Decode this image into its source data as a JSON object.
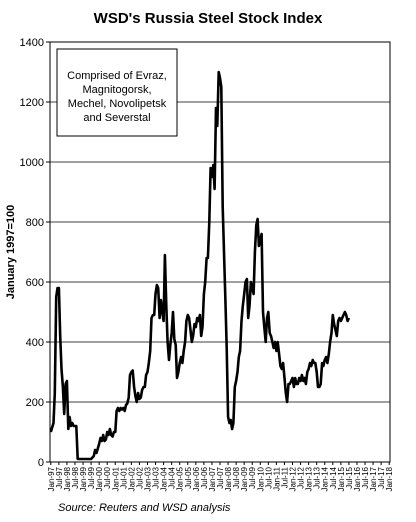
{
  "chart_data": {
    "type": "line",
    "title": "WSD's Russia Steel Stock Index",
    "ylabel": "January 1997=100",
    "xlabel": "",
    "ylim": [
      0,
      1400
    ],
    "yticks": [
      0,
      200,
      400,
      600,
      800,
      1000,
      1200,
      1400
    ],
    "grid": "horizontal",
    "legend": "none",
    "annotation": [
      "Comprised  of Evraz,",
      "Magnitogorsk,",
      "Mechel, Novolipetsk",
      "and Severstal"
    ],
    "source": "Source:  Reuters and WSD analysis",
    "line_color": "#000000",
    "x_ticks": [
      "Jan-97",
      "Jul-97",
      "Jan-98",
      "Jul-98",
      "Jan-99",
      "Jul-99",
      "Jan-00",
      "Jul-00",
      "Jan-01",
      "Jul-01",
      "Jan-02",
      "Jul-02",
      "Jan-03",
      "Jul-03",
      "Jan-04",
      "Jul-04",
      "Jan-05",
      "Jul-05",
      "Jan-06",
      "Jul-06",
      "Jan-07",
      "Jul-07",
      "Jan-08",
      "Jul-08",
      "Jan-09",
      "Jul-09",
      "Jan-10",
      "Jul-10",
      "Jan-11",
      "Jul-11",
      "Jan-12",
      "Jul-12",
      "Jan-13",
      "Jul-13",
      "Jan-14",
      "Jul-14",
      "Jan-15",
      "Jul-15",
      "Jan-16",
      "Jul-16",
      "Jan-17",
      "Jul-17",
      "Jan-18"
    ],
    "series": [
      {
        "points": [
          [
            "Jan-97",
            100
          ],
          [
            "Mar-97",
            130
          ],
          [
            "Apr-97",
            230
          ],
          [
            "May-97",
            550
          ],
          [
            "Jun-97",
            580
          ],
          [
            "Jul-97",
            580
          ],
          [
            "Aug-97",
            420
          ],
          [
            "Sep-97",
            310
          ],
          [
            "Oct-97",
            250
          ],
          [
            "Nov-97",
            160
          ],
          [
            "Dec-97",
            260
          ],
          [
            "Jan-98",
            270
          ],
          [
            "Feb-98",
            110
          ],
          [
            "Mar-98",
            150
          ],
          [
            "Apr-98",
            120
          ],
          [
            "May-98",
            130
          ],
          [
            "Jun-98",
            120
          ],
          [
            "Aug-98",
            120
          ],
          [
            "Sep-98",
            10
          ],
          [
            "Jan-99",
            10
          ],
          [
            "Jul-99",
            10
          ],
          [
            "Aug-99",
            15
          ],
          [
            "Sep-99",
            20
          ],
          [
            "Oct-99",
            40
          ],
          [
            "Nov-99",
            30
          ],
          [
            "Dec-99",
            45
          ],
          [
            "Jan-00",
            60
          ],
          [
            "Feb-00",
            80
          ],
          [
            "Mar-00",
            70
          ],
          [
            "Apr-00",
            90
          ],
          [
            "May-00",
            70
          ],
          [
            "Jun-00",
            75
          ],
          [
            "Jul-00",
            100
          ],
          [
            "Aug-00",
            90
          ],
          [
            "Sep-00",
            110
          ],
          [
            "Oct-00",
            90
          ],
          [
            "Nov-00",
            85
          ],
          [
            "Dec-00",
            100
          ],
          [
            "Jan-01",
            100
          ],
          [
            "Feb-01",
            170
          ],
          [
            "Mar-01",
            180
          ],
          [
            "Apr-01",
            170
          ],
          [
            "May-01",
            180
          ],
          [
            "Jun-01",
            175
          ],
          [
            "Jul-01",
            180
          ],
          [
            "Aug-01",
            170
          ],
          [
            "Sep-01",
            190
          ],
          [
            "Oct-01",
            195
          ],
          [
            "Nov-01",
            215
          ],
          [
            "Dec-01",
            290
          ],
          [
            "Jan-02",
            300
          ],
          [
            "Feb-02",
            305
          ],
          [
            "Mar-02",
            250
          ],
          [
            "Apr-02",
            220
          ],
          [
            "May-02",
            200
          ],
          [
            "Jun-02",
            230
          ],
          [
            "Jul-02",
            210
          ],
          [
            "Aug-02",
            215
          ],
          [
            "Sep-02",
            240
          ],
          [
            "Oct-02",
            250
          ],
          [
            "Nov-02",
            250
          ],
          [
            "Dec-02",
            290
          ],
          [
            "Jan-03",
            300
          ],
          [
            "Feb-03",
            330
          ],
          [
            "Mar-03",
            370
          ],
          [
            "Apr-03",
            480
          ],
          [
            "May-03",
            490
          ],
          [
            "Jun-03",
            490
          ],
          [
            "Jul-03",
            560
          ],
          [
            "Aug-03",
            590
          ],
          [
            "Sep-03",
            580
          ],
          [
            "Oct-03",
            480
          ],
          [
            "Nov-03",
            540
          ],
          [
            "Dec-03",
            500
          ],
          [
            "Jan-04",
            470
          ],
          [
            "Feb-04",
            690
          ],
          [
            "Mar-04",
            520
          ],
          [
            "Apr-04",
            400
          ],
          [
            "May-04",
            340
          ],
          [
            "Jun-04",
            390
          ],
          [
            "Jul-04",
            430
          ],
          [
            "Aug-04",
            500
          ],
          [
            "Sep-04",
            410
          ],
          [
            "Oct-04",
            390
          ],
          [
            "Nov-04",
            280
          ],
          [
            "Dec-04",
            300
          ],
          [
            "Jan-05",
            330
          ],
          [
            "Feb-05",
            350
          ],
          [
            "Mar-05",
            330
          ],
          [
            "Apr-05",
            370
          ],
          [
            "May-05",
            400
          ],
          [
            "Jun-05",
            470
          ],
          [
            "Jul-05",
            490
          ],
          [
            "Aug-05",
            480
          ],
          [
            "Sep-05",
            440
          ],
          [
            "Oct-05",
            400
          ],
          [
            "Nov-05",
            420
          ],
          [
            "Dec-05",
            460
          ],
          [
            "Jan-06",
            450
          ],
          [
            "Feb-06",
            480
          ],
          [
            "Mar-06",
            470
          ],
          [
            "Apr-06",
            490
          ],
          [
            "May-06",
            420
          ],
          [
            "Jun-06",
            450
          ],
          [
            "Jul-06",
            560
          ],
          [
            "Aug-06",
            600
          ],
          [
            "Sep-06",
            680
          ],
          [
            "Oct-06",
            680
          ],
          [
            "Nov-06",
            800
          ],
          [
            "Dec-06",
            980
          ],
          [
            "Jan-07",
            950
          ],
          [
            "Feb-07",
            990
          ],
          [
            "Mar-07",
            910
          ],
          [
            "Apr-07",
            1180
          ],
          [
            "May-07",
            1120
          ],
          [
            "Jun-07",
            1300
          ],
          [
            "Jul-07",
            1280
          ],
          [
            "Aug-07",
            1250
          ],
          [
            "Sep-07",
            850
          ],
          [
            "Oct-07",
            700
          ],
          [
            "Nov-07",
            540
          ],
          [
            "Dec-07",
            380
          ],
          [
            "Jan-08",
            150
          ],
          [
            "Feb-08",
            130
          ],
          [
            "Mar-08",
            140
          ],
          [
            "Apr-08",
            110
          ],
          [
            "May-08",
            130
          ],
          [
            "Jun-08",
            250
          ],
          [
            "Jul-08",
            270
          ],
          [
            "Aug-08",
            300
          ],
          [
            "Sep-08",
            350
          ],
          [
            "Oct-08",
            370
          ],
          [
            "Nov-08",
            470
          ],
          [
            "Dec-08",
            520
          ],
          [
            "Jan-09",
            560
          ],
          [
            "Feb-09",
            600
          ],
          [
            "Mar-09",
            610
          ],
          [
            "Apr-09",
            480
          ],
          [
            "May-09",
            520
          ],
          [
            "Jun-09",
            600
          ],
          [
            "Jul-09",
            580
          ],
          [
            "Aug-09",
            560
          ],
          [
            "Sep-09",
            700
          ],
          [
            "Oct-09",
            790
          ],
          [
            "Nov-09",
            810
          ],
          [
            "Dec-09",
            720
          ],
          [
            "Jan-10",
            740
          ],
          [
            "Feb-10",
            760
          ],
          [
            "Mar-10",
            500
          ],
          [
            "Apr-10",
            450
          ],
          [
            "May-10",
            400
          ],
          [
            "Jun-10",
            480
          ],
          [
            "Jul-10",
            500
          ],
          [
            "Aug-10",
            430
          ],
          [
            "Sep-10",
            420
          ],
          [
            "Oct-10",
            400
          ],
          [
            "Nov-10",
            380
          ],
          [
            "Dec-10",
            400
          ],
          [
            "Jan-11",
            370
          ],
          [
            "Feb-11",
            400
          ],
          [
            "Mar-11",
            360
          ],
          [
            "Apr-11",
            320
          ],
          [
            "May-11",
            310
          ],
          [
            "Jun-11",
            330
          ],
          [
            "Jul-11",
            280
          ],
          [
            "Aug-11",
            230
          ],
          [
            "Sep-11",
            200
          ],
          [
            "Oct-11",
            260
          ],
          [
            "Nov-11",
            260
          ],
          [
            "Dec-11",
            270
          ],
          [
            "Jan-12",
            280
          ],
          [
            "Feb-12",
            250
          ],
          [
            "Mar-12",
            280
          ],
          [
            "Apr-12",
            260
          ],
          [
            "May-12",
            260
          ],
          [
            "Jun-12",
            280
          ],
          [
            "Jul-12",
            270
          ],
          [
            "Aug-12",
            290
          ],
          [
            "Sep-12",
            270
          ],
          [
            "Oct-12",
            280
          ],
          [
            "Nov-12",
            260
          ],
          [
            "Dec-12",
            300
          ],
          [
            "Jan-13",
            310
          ],
          [
            "Feb-13",
            330
          ],
          [
            "Mar-13",
            320
          ],
          [
            "Apr-13",
            340
          ],
          [
            "May-13",
            330
          ],
          [
            "Jun-13",
            330
          ],
          [
            "Jul-13",
            300
          ],
          [
            "Aug-13",
            250
          ],
          [
            "Sep-13",
            250
          ],
          [
            "Oct-13",
            260
          ],
          [
            "Nov-13",
            330
          ],
          [
            "Dec-13",
            320
          ],
          [
            "Jan-14",
            340
          ],
          [
            "Feb-14",
            350
          ],
          [
            "Mar-14",
            330
          ],
          [
            "Apr-14",
            360
          ],
          [
            "May-14",
            400
          ],
          [
            "Jun-14",
            430
          ],
          [
            "Jul-14",
            490
          ],
          [
            "Aug-14",
            460
          ],
          [
            "Sep-14",
            440
          ],
          [
            "Oct-14",
            420
          ],
          [
            "Nov-14",
            470
          ],
          [
            "Dec-14",
            480
          ],
          [
            "Jan-15",
            470
          ],
          [
            "Feb-15",
            480
          ],
          [
            "Mar-15",
            490
          ],
          [
            "Apr-15",
            500
          ],
          [
            "May-15",
            490
          ],
          [
            "Jun-15",
            470
          ],
          [
            "Jul-15",
            480
          ]
        ]
      }
    ]
  }
}
